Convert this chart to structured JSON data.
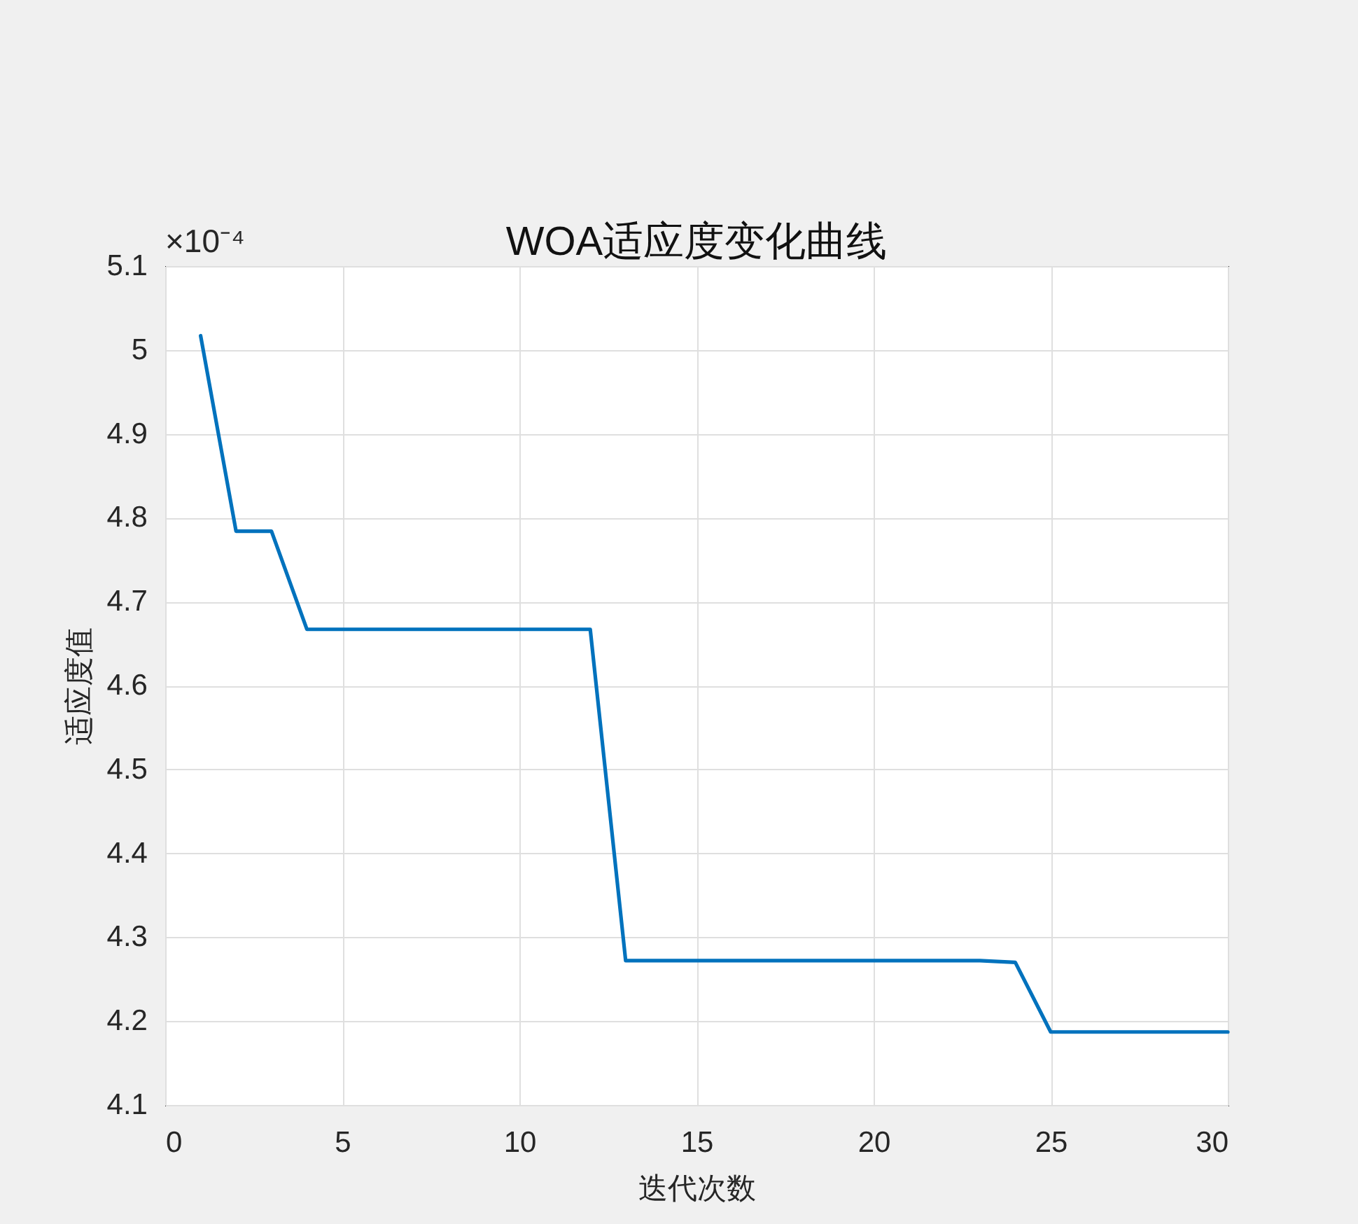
{
  "chart_data": {
    "type": "line",
    "title": "WOA适应度变化曲线",
    "xlabel": "迭代次数",
    "ylabel": "适应度值",
    "annotations": [
      "×10⁻⁴"
    ],
    "x": [
      1,
      2,
      3,
      4,
      5,
      6,
      7,
      8,
      9,
      10,
      11,
      12,
      13,
      14,
      15,
      16,
      17,
      18,
      19,
      20,
      21,
      22,
      23,
      24,
      25,
      26,
      27,
      28,
      29,
      30
    ],
    "series": [
      {
        "color": "#0072bd",
        "values": [
          5.017,
          4.784,
          4.784,
          4.667,
          4.667,
          4.667,
          4.667,
          4.667,
          4.667,
          4.667,
          4.667,
          4.667,
          4.272,
          4.272,
          4.272,
          4.272,
          4.272,
          4.272,
          4.272,
          4.272,
          4.272,
          4.272,
          4.272,
          4.27,
          4.187,
          4.187,
          4.187,
          4.187,
          4.187,
          4.187
        ]
      }
    ],
    "xlim": [
      0,
      30
    ],
    "ylim": [
      4.1,
      5.1
    ],
    "xticks": [
      0,
      5,
      10,
      15,
      20,
      25,
      30
    ],
    "yticks": [
      4.1,
      4.2,
      4.3,
      4.4,
      4.5,
      4.6,
      4.7,
      4.8,
      4.9,
      5,
      5.1
    ],
    "grid": true,
    "line_style": "solid"
  }
}
